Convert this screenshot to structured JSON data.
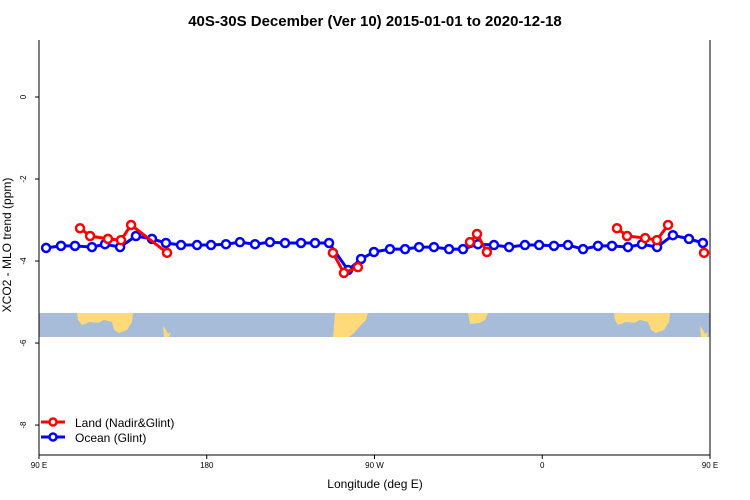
{
  "chart_data": {
    "type": "line",
    "title": "40S-30S December (Ver 10)   2015-01-01 to 2020-12-18",
    "xlabel": "Longitude (deg E)",
    "ylabel": "XCO2 - MLO trend (ppm)",
    "xlim": [
      90,
      450
    ],
    "ylim": [
      1.39,
      -8.73
    ],
    "x_ticks": [
      {
        "value": 90,
        "label": "90 E"
      },
      {
        "value": 180,
        "label": "180"
      },
      {
        "value": 270,
        "label": "90 W"
      },
      {
        "value": 360,
        "label": "0"
      },
      {
        "value": 450,
        "label": "90 E"
      },
      {
        "value": 540,
        "label": "180"
      }
    ],
    "y_ticks": [
      0,
      -2,
      -4,
      -6,
      -8
    ],
    "grid": false,
    "legend_position": "bottom-left",
    "colors": {
      "land": "#ff0000",
      "ocean": "#0000ff",
      "map_ocean": "#a7bcd9",
      "map_land": "#ffd97a"
    },
    "series": [
      {
        "name": "Land (Nadir&Glint)",
        "color": "#ff0000",
        "segments": [
          {
            "x": [
              112.0,
              117.4,
              127.0,
              134.0,
              139.4,
              158.7
            ],
            "y": [
              -3.2,
              -3.39,
              -3.46,
              -3.49,
              -3.12,
              -3.8
            ]
          },
          {
            "x": [
              247.7,
              253.6,
              261.1
            ],
            "y": [
              -3.8,
              -4.29,
              -4.15
            ]
          },
          {
            "x": [
              321.2,
              325.0,
              330.3
            ],
            "y": [
              -3.54,
              -3.34,
              -3.78
            ]
          },
          {
            "x": [
              400.1,
              405.5,
              415.2,
              421.5,
              427.5
            ],
            "y": [
              -3.2,
              -3.39,
              -3.44,
              -3.49,
              -3.12
            ]
          },
          {
            "x": [
              446.8
            ],
            "y": [
              -3.8
            ]
          }
        ]
      },
      {
        "name": "Ocean (Glint)",
        "color": "#0000ff",
        "segments": [
          {
            "x": [
              93.8,
              101.8,
              109.3,
              118.4,
              125.4,
              133.5,
              142.0,
              150.6,
              158.1,
              166.2,
              174.8,
              182.3,
              190.3,
              197.8,
              205.9,
              213.9,
              222.0,
              230.6,
              238.1,
              245.6,
              255.8,
              262.8,
              269.7,
              278.3,
              286.4,
              293.9,
              301.9,
              310.0,
              317.5,
              325.5,
              334.1,
              342.2,
              350.7,
              358.3,
              366.3,
              373.8,
              381.9,
              389.9,
              397.4,
              406.0,
              413.5,
              421.6,
              430.1,
              438.7,
              446.2
            ],
            "y": [
              -3.68,
              -3.63,
              -3.63,
              -3.66,
              -3.59,
              -3.66,
              -3.39,
              -3.46,
              -3.56,
              -3.61,
              -3.61,
              -3.61,
              -3.59,
              -3.54,
              -3.59,
              -3.54,
              -3.56,
              -3.56,
              -3.56,
              -3.56,
              -4.22,
              -3.95,
              -3.78,
              -3.71,
              -3.71,
              -3.66,
              -3.66,
              -3.71,
              -3.71,
              -3.59,
              -3.61,
              -3.66,
              -3.61,
              -3.61,
              -3.63,
              -3.61,
              -3.71,
              -3.63,
              -3.63,
              -3.66,
              -3.59,
              -3.66,
              -3.37,
              -3.46,
              -3.56
            ]
          }
        ]
      }
    ]
  }
}
